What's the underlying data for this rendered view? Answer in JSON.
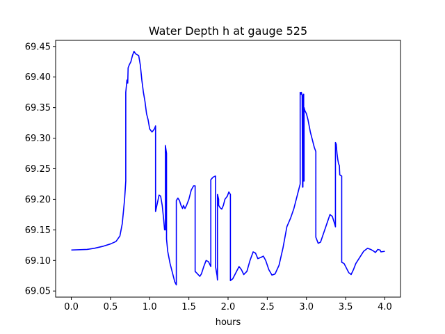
{
  "chart_data": {
    "type": "line",
    "title": "Water Depth h at gauge 525",
    "xlabel": "hours",
    "ylabel": "",
    "xlim": [
      -0.2,
      4.2
    ],
    "ylim": [
      69.04,
      69.46
    ],
    "x_ticks": [
      0.0,
      0.5,
      1.0,
      1.5,
      2.0,
      2.5,
      3.0,
      3.5,
      4.0
    ],
    "x_tick_labels": [
      "0.0",
      "0.5",
      "1.0",
      "1.5",
      "2.0",
      "2.5",
      "3.0",
      "3.5",
      "4.0"
    ],
    "y_ticks": [
      69.05,
      69.1,
      69.15,
      69.2,
      69.25,
      69.3,
      69.35,
      69.4,
      69.45
    ],
    "y_tick_labels": [
      "69.05",
      "69.10",
      "69.15",
      "69.20",
      "69.25",
      "69.30",
      "69.35",
      "69.40",
      "69.45"
    ],
    "grid": false,
    "legend": "none",
    "series": [
      {
        "color": "#0000ff",
        "points": [
          [
            0.0,
            69.117
          ],
          [
            0.2,
            69.118
          ],
          [
            0.3,
            69.12
          ],
          [
            0.4,
            69.123
          ],
          [
            0.5,
            69.127
          ],
          [
            0.57,
            69.131
          ],
          [
            0.62,
            69.14
          ],
          [
            0.65,
            69.16
          ],
          [
            0.68,
            69.2
          ],
          [
            0.695,
            69.23
          ],
          [
            0.695,
            69.375
          ],
          [
            0.71,
            69.395
          ],
          [
            0.72,
            69.39
          ],
          [
            0.725,
            69.415
          ],
          [
            0.74,
            69.42
          ],
          [
            0.76,
            69.425
          ],
          [
            0.78,
            69.435
          ],
          [
            0.8,
            69.442
          ],
          [
            0.82,
            69.438
          ],
          [
            0.86,
            69.435
          ],
          [
            0.88,
            69.42
          ],
          [
            0.9,
            69.395
          ],
          [
            0.92,
            69.375
          ],
          [
            0.94,
            69.36
          ],
          [
            0.96,
            69.34
          ],
          [
            0.98,
            69.33
          ],
          [
            1.0,
            69.315
          ],
          [
            1.03,
            69.31
          ],
          [
            1.06,
            69.315
          ],
          [
            1.075,
            69.32
          ],
          [
            1.075,
            69.18
          ],
          [
            1.1,
            69.195
          ],
          [
            1.12,
            69.207
          ],
          [
            1.14,
            69.205
          ],
          [
            1.16,
            69.19
          ],
          [
            1.18,
            69.165
          ],
          [
            1.19,
            69.15
          ],
          [
            1.2,
            69.15
          ],
          [
            1.2,
            69.288
          ],
          [
            1.215,
            69.275
          ],
          [
            1.215,
            69.135
          ],
          [
            1.23,
            69.115
          ],
          [
            1.26,
            69.095
          ],
          [
            1.29,
            69.08
          ],
          [
            1.32,
            69.065
          ],
          [
            1.34,
            69.06
          ],
          [
            1.34,
            69.198
          ],
          [
            1.36,
            69.202
          ],
          [
            1.38,
            69.198
          ],
          [
            1.4,
            69.19
          ],
          [
            1.42,
            69.185
          ],
          [
            1.43,
            69.19
          ],
          [
            1.45,
            69.185
          ],
          [
            1.47,
            69.19
          ],
          [
            1.5,
            69.2
          ],
          [
            1.53,
            69.215
          ],
          [
            1.56,
            69.222
          ],
          [
            1.58,
            69.222
          ],
          [
            1.58,
            69.082
          ],
          [
            1.61,
            69.078
          ],
          [
            1.64,
            69.074
          ],
          [
            1.66,
            69.078
          ],
          [
            1.69,
            69.09
          ],
          [
            1.72,
            69.1
          ],
          [
            1.75,
            69.098
          ],
          [
            1.78,
            69.09
          ],
          [
            1.78,
            69.232
          ],
          [
            1.8,
            69.235
          ],
          [
            1.82,
            69.237
          ],
          [
            1.84,
            69.238
          ],
          [
            1.84,
            69.09
          ],
          [
            1.86,
            69.075
          ],
          [
            1.865,
            69.068
          ],
          [
            1.865,
            69.208
          ],
          [
            1.88,
            69.2
          ],
          [
            1.88,
            69.19
          ],
          [
            1.9,
            69.186
          ],
          [
            1.92,
            69.184
          ],
          [
            1.94,
            69.19
          ],
          [
            1.96,
            69.2
          ],
          [
            1.99,
            69.205
          ],
          [
            2.01,
            69.212
          ],
          [
            2.03,
            69.208
          ],
          [
            2.03,
            69.067
          ],
          [
            2.06,
            69.07
          ],
          [
            2.1,
            69.08
          ],
          [
            2.14,
            69.09
          ],
          [
            2.17,
            69.085
          ],
          [
            2.2,
            69.077
          ],
          [
            2.24,
            69.082
          ],
          [
            2.28,
            69.1
          ],
          [
            2.32,
            69.114
          ],
          [
            2.35,
            69.112
          ],
          [
            2.38,
            69.103
          ],
          [
            2.42,
            69.105
          ],
          [
            2.45,
            69.107
          ],
          [
            2.48,
            69.1
          ],
          [
            2.52,
            69.085
          ],
          [
            2.56,
            69.076
          ],
          [
            2.6,
            69.078
          ],
          [
            2.65,
            69.092
          ],
          [
            2.7,
            69.12
          ],
          [
            2.75,
            69.155
          ],
          [
            2.8,
            69.17
          ],
          [
            2.84,
            69.185
          ],
          [
            2.87,
            69.2
          ],
          [
            2.9,
            69.215
          ],
          [
            2.92,
            69.225
          ],
          [
            2.92,
            69.375
          ],
          [
            2.93,
            69.372
          ],
          [
            2.935,
            69.375
          ],
          [
            2.945,
            69.37
          ],
          [
            2.95,
            69.22
          ],
          [
            2.955,
            69.22
          ],
          [
            2.955,
            69.37
          ],
          [
            2.965,
            69.372
          ],
          [
            2.965,
            69.23
          ],
          [
            2.97,
            69.23
          ],
          [
            2.97,
            69.35
          ],
          [
            2.98,
            69.345
          ],
          [
            3.0,
            69.34
          ],
          [
            3.02,
            69.33
          ],
          [
            3.05,
            69.31
          ],
          [
            3.08,
            69.295
          ],
          [
            3.1,
            69.285
          ],
          [
            3.12,
            69.278
          ],
          [
            3.12,
            69.138
          ],
          [
            3.15,
            69.128
          ],
          [
            3.18,
            69.13
          ],
          [
            3.22,
            69.145
          ],
          [
            3.26,
            69.16
          ],
          [
            3.3,
            69.175
          ],
          [
            3.33,
            69.172
          ],
          [
            3.36,
            69.16
          ],
          [
            3.37,
            69.155
          ],
          [
            3.37,
            69.293
          ],
          [
            3.38,
            69.29
          ],
          [
            3.39,
            69.275
          ],
          [
            3.4,
            69.265
          ],
          [
            3.41,
            69.258
          ],
          [
            3.42,
            69.255
          ],
          [
            3.425,
            69.24
          ],
          [
            3.45,
            69.238
          ],
          [
            3.45,
            69.097
          ],
          [
            3.48,
            69.095
          ],
          [
            3.5,
            69.09
          ],
          [
            3.54,
            69.08
          ],
          [
            3.57,
            69.077
          ],
          [
            3.6,
            69.085
          ],
          [
            3.63,
            69.095
          ],
          [
            3.68,
            69.105
          ],
          [
            3.73,
            69.115
          ],
          [
            3.78,
            69.12
          ],
          [
            3.82,
            69.118
          ],
          [
            3.86,
            69.115
          ],
          [
            3.88,
            69.113
          ],
          [
            3.91,
            69.118
          ],
          [
            3.94,
            69.117
          ],
          [
            3.95,
            69.114
          ],
          [
            4.0,
            69.115
          ]
        ]
      }
    ]
  }
}
